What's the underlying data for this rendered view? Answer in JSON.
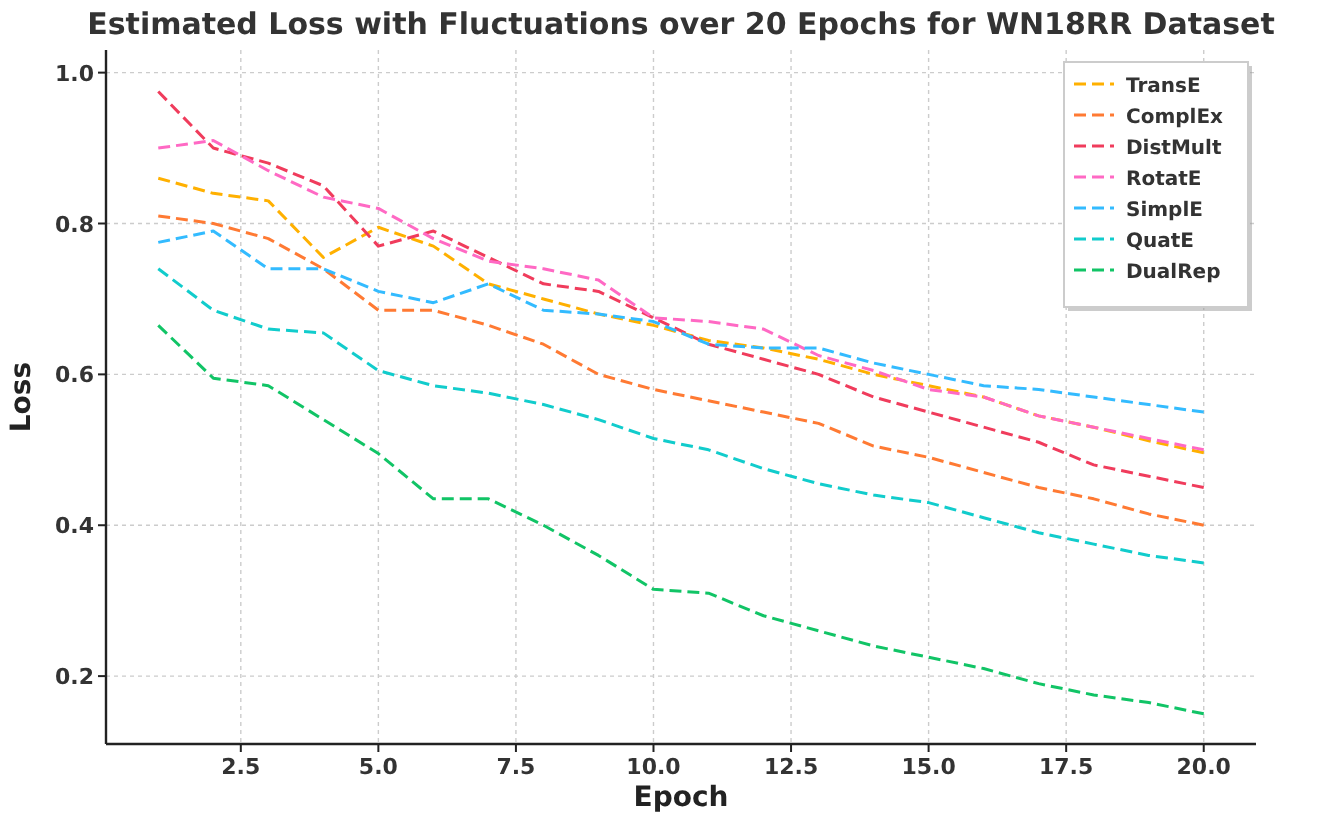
{
  "chart_data": {
    "type": "line",
    "title": "Estimated Loss with Fluctuations over 20 Epochs for WN18RR Dataset",
    "xlabel": "Epoch",
    "ylabel": "Loss",
    "x": [
      1,
      2,
      3,
      4,
      5,
      6,
      7,
      8,
      9,
      10,
      11,
      12,
      13,
      14,
      15,
      16,
      17,
      18,
      19,
      20
    ],
    "xlim": [
      0.05,
      20.95
    ],
    "ylim": [
      0.11,
      1.03
    ],
    "xticks": [
      {
        "value": 2.5,
        "label": "2.5"
      },
      {
        "value": 5,
        "label": "5.0"
      },
      {
        "value": 7.5,
        "label": "7.5"
      },
      {
        "value": 10,
        "label": "10.0"
      },
      {
        "value": 12.5,
        "label": "12.5"
      },
      {
        "value": 15,
        "label": "15.0"
      },
      {
        "value": 17.5,
        "label": "17.5"
      },
      {
        "value": 20,
        "label": "20.0"
      }
    ],
    "yticks": [
      0.2,
      0.4,
      0.6,
      0.8,
      {
        "value": 1,
        "label": "1.0"
      }
    ],
    "grid": true,
    "legend": "top right",
    "line_style": "dashed",
    "marker": "none",
    "series": [
      {
        "name": "TransE",
        "color": "#ffb000",
        "values": [
          0.86,
          0.84,
          0.83,
          0.755,
          0.795,
          0.77,
          0.72,
          0.7,
          0.68,
          0.665,
          0.645,
          0.635,
          0.62,
          0.6,
          0.585,
          0.57,
          0.545,
          0.53,
          0.512,
          0.496
        ]
      },
      {
        "name": "ComplEx",
        "color": "#ff7a33",
        "values": [
          0.81,
          0.8,
          0.78,
          0.74,
          0.685,
          0.685,
          0.665,
          0.64,
          0.6,
          0.58,
          0.565,
          0.55,
          0.535,
          0.505,
          0.49,
          0.47,
          0.45,
          0.435,
          0.415,
          0.4
        ]
      },
      {
        "name": "DistMult",
        "color": "#f03c5c",
        "values": [
          0.975,
          0.9,
          0.88,
          0.85,
          0.77,
          0.79,
          0.755,
          0.72,
          0.71,
          0.675,
          0.64,
          0.62,
          0.6,
          0.57,
          0.55,
          0.53,
          0.51,
          0.48,
          0.465,
          0.45
        ]
      },
      {
        "name": "RotatE",
        "color": "#ff69c4",
        "values": [
          0.9,
          0.91,
          0.87,
          0.835,
          0.82,
          0.78,
          0.75,
          0.74,
          0.725,
          0.675,
          0.67,
          0.66,
          0.625,
          0.605,
          0.58,
          0.57,
          0.545,
          0.53,
          0.515,
          0.5
        ]
      },
      {
        "name": "SimplE",
        "color": "#33bbff",
        "values": [
          0.775,
          0.79,
          0.74,
          0.74,
          0.71,
          0.695,
          0.72,
          0.685,
          0.68,
          0.67,
          0.64,
          0.635,
          0.635,
          0.615,
          0.6,
          0.585,
          0.58,
          0.57,
          0.56,
          0.55
        ]
      },
      {
        "name": "QuatE",
        "color": "#11cccc",
        "values": [
          0.74,
          0.685,
          0.66,
          0.655,
          0.605,
          0.585,
          0.575,
          0.56,
          0.54,
          0.515,
          0.5,
          0.475,
          0.455,
          0.44,
          0.43,
          0.41,
          0.39,
          0.375,
          0.36,
          0.35
        ]
      },
      {
        "name": "DualRep",
        "color": "#11c466",
        "values": [
          0.665,
          0.595,
          0.585,
          0.54,
          0.495,
          0.435,
          0.435,
          0.4,
          0.36,
          0.315,
          0.31,
          0.28,
          0.26,
          0.24,
          0.225,
          0.21,
          0.19,
          0.175,
          0.165,
          0.15
        ]
      }
    ]
  }
}
